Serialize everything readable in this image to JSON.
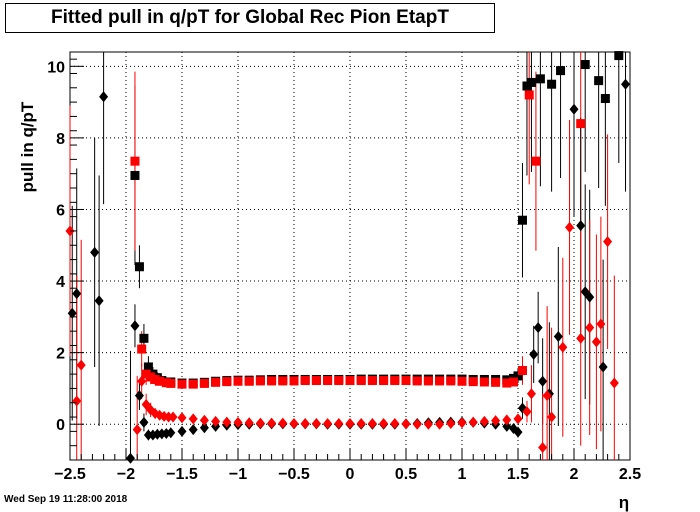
{
  "timestamp": "Wed Sep 19 11:28:00 2018",
  "chart_data": {
    "type": "scatter",
    "title": "Fitted pull in q/pT for Global Rec Pion EtapT",
    "xlabel": "η",
    "ylabel": "pull in q/pT",
    "xlim": [
      -2.5,
      2.5
    ],
    "ylim": [
      -1,
      10.4
    ],
    "grid": true,
    "x_ticks": [
      -2.5,
      -2,
      -1.5,
      -1,
      -0.5,
      0,
      0.5,
      1,
      1.5,
      2,
      2.5
    ],
    "x_tick_labels": [
      "−2.5",
      "−2",
      "−1.5",
      "−1",
      "−0.5",
      "0",
      "0.5",
      "1",
      "1.5",
      "2",
      "2.5"
    ],
    "y_ticks": [
      0,
      2,
      4,
      6,
      8,
      10
    ],
    "y_tick_labels": [
      "0",
      "2",
      "4",
      "6",
      "8",
      "10"
    ],
    "colors": {
      "series_a": "#000000",
      "series_b": "#ff0000"
    },
    "series": [
      {
        "marker": "square",
        "color": "#000000",
        "points": [
          [
            -1.92,
            6.95,
            2.5
          ],
          [
            -1.88,
            4.4,
            0.6
          ],
          [
            -1.84,
            2.4,
            0.4
          ],
          [
            -1.8,
            1.6,
            0.3
          ],
          [
            -1.76,
            1.4,
            0.2
          ],
          [
            -1.72,
            1.3,
            0.15
          ],
          [
            -1.68,
            1.22,
            0.1
          ],
          [
            -1.6,
            1.18,
            0.05
          ],
          [
            -1.5,
            1.15,
            0.04
          ],
          [
            -1.4,
            1.15,
            0.03
          ],
          [
            -1.3,
            1.17,
            0.03
          ],
          [
            -1.2,
            1.2,
            0.03
          ],
          [
            -1.1,
            1.22,
            0.03
          ],
          [
            -1.0,
            1.23,
            0.03
          ],
          [
            -0.9,
            1.23,
            0.03
          ],
          [
            -0.8,
            1.24,
            0.03
          ],
          [
            -0.7,
            1.25,
            0.03
          ],
          [
            -0.6,
            1.25,
            0.03
          ],
          [
            -0.5,
            1.25,
            0.03
          ],
          [
            -0.4,
            1.25,
            0.03
          ],
          [
            -0.3,
            1.25,
            0.03
          ],
          [
            -0.2,
            1.25,
            0.03
          ],
          [
            -0.1,
            1.25,
            0.03
          ],
          [
            0.0,
            1.25,
            0.03
          ],
          [
            0.1,
            1.26,
            0.03
          ],
          [
            0.2,
            1.26,
            0.03
          ],
          [
            0.3,
            1.26,
            0.03
          ],
          [
            0.4,
            1.26,
            0.03
          ],
          [
            0.5,
            1.26,
            0.03
          ],
          [
            0.6,
            1.26,
            0.03
          ],
          [
            0.7,
            1.26,
            0.03
          ],
          [
            0.8,
            1.26,
            0.03
          ],
          [
            0.9,
            1.26,
            0.03
          ],
          [
            1.0,
            1.26,
            0.03
          ],
          [
            1.1,
            1.25,
            0.03
          ],
          [
            1.2,
            1.25,
            0.03
          ],
          [
            1.3,
            1.25,
            0.03
          ],
          [
            1.4,
            1.24,
            0.04
          ],
          [
            1.46,
            1.28,
            0.1
          ],
          [
            1.5,
            1.35,
            0.2
          ],
          [
            1.54,
            5.7,
            1.6
          ],
          [
            1.58,
            9.45,
            2.5
          ],
          [
            1.62,
            9.55,
            2.5
          ],
          [
            1.7,
            9.65,
            3.0
          ],
          [
            1.8,
            9.5,
            3.0
          ],
          [
            1.88,
            9.88,
            3.0
          ],
          [
            2.1,
            10.05,
            3.0
          ],
          [
            2.22,
            9.6,
            3.0
          ],
          [
            2.28,
            9.1,
            3.0
          ],
          [
            2.4,
            10.3,
            3.0
          ]
        ]
      },
      {
        "marker": "square",
        "color": "#ff0000",
        "points": [
          [
            -1.92,
            7.35,
            2.5
          ],
          [
            -1.86,
            2.1,
            0.5
          ],
          [
            -1.82,
            1.4,
            0.3
          ],
          [
            -1.78,
            1.32,
            0.2
          ],
          [
            -1.74,
            1.25,
            0.15
          ],
          [
            -1.7,
            1.2,
            0.1
          ],
          [
            -1.64,
            1.16,
            0.06
          ],
          [
            -1.6,
            1.14,
            0.05
          ],
          [
            -1.5,
            1.12,
            0.04
          ],
          [
            -1.4,
            1.12,
            0.03
          ],
          [
            -1.3,
            1.14,
            0.03
          ],
          [
            -1.2,
            1.17,
            0.03
          ],
          [
            -1.1,
            1.19,
            0.03
          ],
          [
            -1.0,
            1.2,
            0.03
          ],
          [
            -0.9,
            1.2,
            0.03
          ],
          [
            -0.8,
            1.21,
            0.03
          ],
          [
            -0.7,
            1.21,
            0.03
          ],
          [
            -0.6,
            1.21,
            0.03
          ],
          [
            -0.5,
            1.21,
            0.03
          ],
          [
            -0.4,
            1.22,
            0.03
          ],
          [
            -0.3,
            1.22,
            0.03
          ],
          [
            -0.2,
            1.22,
            0.03
          ],
          [
            -0.1,
            1.22,
            0.03
          ],
          [
            0.0,
            1.22,
            0.03
          ],
          [
            0.1,
            1.22,
            0.03
          ],
          [
            0.2,
            1.22,
            0.03
          ],
          [
            0.3,
            1.22,
            0.03
          ],
          [
            0.4,
            1.22,
            0.03
          ],
          [
            0.5,
            1.22,
            0.03
          ],
          [
            0.6,
            1.21,
            0.03
          ],
          [
            0.7,
            1.21,
            0.03
          ],
          [
            0.8,
            1.21,
            0.03
          ],
          [
            0.9,
            1.21,
            0.03
          ],
          [
            1.0,
            1.2,
            0.03
          ],
          [
            1.1,
            1.19,
            0.03
          ],
          [
            1.2,
            1.18,
            0.03
          ],
          [
            1.3,
            1.17,
            0.03
          ],
          [
            1.4,
            1.15,
            0.04
          ],
          [
            1.46,
            1.18,
            0.1
          ],
          [
            1.54,
            1.5,
            0.4
          ],
          [
            1.6,
            9.2,
            2.5
          ],
          [
            1.66,
            7.35,
            2.5
          ],
          [
            2.06,
            8.4,
            3.0
          ]
        ]
      },
      {
        "marker": "diamond",
        "color": "#000000",
        "points": [
          [
            -2.48,
            3.1,
            3.0
          ],
          [
            -2.44,
            3.65,
            3.5
          ],
          [
            -2.28,
            4.8,
            3.2
          ],
          [
            -2.24,
            3.45,
            3.5
          ],
          [
            -2.2,
            9.15,
            3.0
          ],
          [
            -1.96,
            -0.95,
            3.0
          ],
          [
            -1.92,
            2.75,
            0.6
          ],
          [
            -1.88,
            0.8,
            0.4
          ],
          [
            -1.84,
            0.05,
            0.25
          ],
          [
            -1.8,
            -0.3,
            0.15
          ],
          [
            -1.76,
            -0.3,
            0.1
          ],
          [
            -1.72,
            -0.28,
            0.08
          ],
          [
            -1.68,
            -0.27,
            0.06
          ],
          [
            -1.64,
            -0.26,
            0.05
          ],
          [
            -1.6,
            -0.24,
            0.04
          ],
          [
            -1.5,
            -0.2,
            0.03
          ],
          [
            -1.4,
            -0.15,
            0.03
          ],
          [
            -1.3,
            -0.1,
            0.03
          ],
          [
            -1.2,
            -0.06,
            0.03
          ],
          [
            -1.1,
            -0.03,
            0.03
          ],
          [
            -1.0,
            -0.01,
            0.03
          ],
          [
            -0.9,
            0.0,
            0.03
          ],
          [
            -0.8,
            0.01,
            0.03
          ],
          [
            -0.7,
            0.01,
            0.03
          ],
          [
            -0.6,
            0.01,
            0.03
          ],
          [
            -0.5,
            0.01,
            0.03
          ],
          [
            -0.4,
            0.01,
            0.03
          ],
          [
            -0.3,
            0.01,
            0.03
          ],
          [
            -0.2,
            0.0,
            0.03
          ],
          [
            -0.1,
            0.0,
            0.03
          ],
          [
            0.0,
            0.0,
            0.03
          ],
          [
            0.1,
            0.0,
            0.03
          ],
          [
            0.2,
            0.0,
            0.03
          ],
          [
            0.3,
            0.0,
            0.03
          ],
          [
            0.4,
            0.0,
            0.03
          ],
          [
            0.5,
            0.01,
            0.03
          ],
          [
            0.6,
            0.02,
            0.03
          ],
          [
            0.7,
            0.04,
            0.03
          ],
          [
            0.8,
            0.05,
            0.03
          ],
          [
            0.9,
            0.06,
            0.03
          ],
          [
            1.0,
            0.06,
            0.03
          ],
          [
            1.1,
            0.05,
            0.03
          ],
          [
            1.2,
            0.03,
            0.03
          ],
          [
            1.3,
            0.0,
            0.03
          ],
          [
            1.4,
            -0.06,
            0.04
          ],
          [
            1.46,
            -0.12,
            0.08
          ],
          [
            1.5,
            -0.22,
            0.15
          ],
          [
            1.54,
            0.45,
            0.3
          ],
          [
            1.64,
            1.95,
            0.8
          ],
          [
            1.68,
            2.7,
            1.0
          ],
          [
            1.72,
            1.2,
            1.2
          ],
          [
            1.78,
            0.85,
            2.0
          ],
          [
            1.86,
            2.45,
            2.5
          ],
          [
            2.0,
            8.8,
            3.0
          ],
          [
            2.06,
            5.55,
            3.0
          ],
          [
            2.1,
            3.7,
            3.0
          ],
          [
            2.14,
            3.55,
            3.0
          ],
          [
            2.26,
            1.6,
            3.0
          ],
          [
            2.46,
            9.5,
            3.0
          ]
        ]
      },
      {
        "marker": "diamond",
        "color": "#ff0000",
        "points": [
          [
            -2.5,
            5.4,
            3.5
          ],
          [
            -2.44,
            0.65,
            3.5
          ],
          [
            -2.4,
            1.65,
            3.5
          ],
          [
            -1.9,
            -0.15,
            1.5
          ],
          [
            -1.86,
            1.2,
            0.5
          ],
          [
            -1.82,
            0.55,
            0.3
          ],
          [
            -1.78,
            0.4,
            0.2
          ],
          [
            -1.74,
            0.3,
            0.15
          ],
          [
            -1.7,
            0.25,
            0.1
          ],
          [
            -1.66,
            0.22,
            0.08
          ],
          [
            -1.62,
            0.2,
            0.06
          ],
          [
            -1.58,
            0.2,
            0.05
          ],
          [
            -1.5,
            0.18,
            0.04
          ],
          [
            -1.4,
            0.15,
            0.03
          ],
          [
            -1.3,
            0.11,
            0.03
          ],
          [
            -1.2,
            0.08,
            0.03
          ],
          [
            -1.1,
            0.06,
            0.03
          ],
          [
            -1.0,
            0.05,
            0.03
          ],
          [
            -0.9,
            0.04,
            0.03
          ],
          [
            -0.8,
            0.03,
            0.03
          ],
          [
            -0.7,
            0.03,
            0.03
          ],
          [
            -0.6,
            0.03,
            0.03
          ],
          [
            -0.5,
            0.02,
            0.03
          ],
          [
            -0.4,
            0.02,
            0.03
          ],
          [
            -0.3,
            0.02,
            0.03
          ],
          [
            -0.2,
            0.02,
            0.03
          ],
          [
            -0.1,
            0.02,
            0.03
          ],
          [
            0.0,
            0.02,
            0.03
          ],
          [
            0.1,
            0.02,
            0.03
          ],
          [
            0.2,
            0.02,
            0.03
          ],
          [
            0.3,
            0.02,
            0.03
          ],
          [
            0.4,
            0.02,
            0.03
          ],
          [
            0.5,
            0.01,
            0.03
          ],
          [
            0.6,
            0.0,
            0.03
          ],
          [
            0.7,
            0.0,
            0.03
          ],
          [
            0.8,
            0.0,
            0.03
          ],
          [
            0.9,
            0.02,
            0.03
          ],
          [
            1.0,
            0.04,
            0.03
          ],
          [
            1.1,
            0.06,
            0.03
          ],
          [
            1.2,
            0.08,
            0.03
          ],
          [
            1.3,
            0.1,
            0.03
          ],
          [
            1.4,
            0.12,
            0.04
          ],
          [
            1.5,
            0.15,
            0.1
          ],
          [
            1.58,
            0.35,
            0.3
          ],
          [
            1.62,
            0.85,
            0.8
          ],
          [
            1.72,
            -0.65,
            1.5
          ],
          [
            1.76,
            0.8,
            2.5
          ],
          [
            1.8,
            0.2,
            2.5
          ],
          [
            1.9,
            2.15,
            2.5
          ],
          [
            1.96,
            5.5,
            3.0
          ],
          [
            2.06,
            2.4,
            3.0
          ],
          [
            2.14,
            2.7,
            3.0
          ],
          [
            2.2,
            2.3,
            3.0
          ],
          [
            2.24,
            2.8,
            3.0
          ],
          [
            2.3,
            5.1,
            3.0
          ],
          [
            2.36,
            1.15,
            3.0
          ]
        ]
      }
    ]
  }
}
